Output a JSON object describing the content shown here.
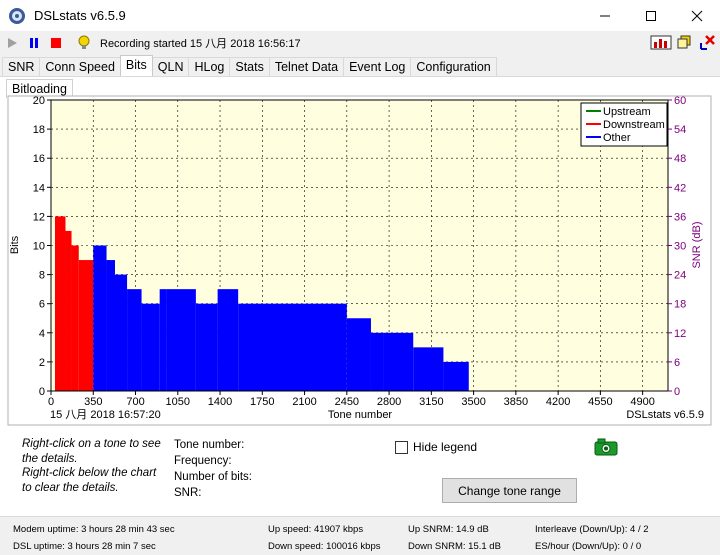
{
  "window": {
    "title": "DSLstats v6.5.9"
  },
  "toolbar": {
    "status": "Recording started 15 八月 2018 16:56:17"
  },
  "tabs": [
    "SNR",
    "Conn Speed",
    "Bits",
    "QLN",
    "HLog",
    "Stats",
    "Telnet Data",
    "Event Log",
    "Configuration"
  ],
  "active_tab": "Bits",
  "subtab": "Bitloading",
  "chart_data": {
    "type": "bar",
    "xlabel": "Tone number",
    "ylabel": "Bits",
    "y2label": "SNR (dB)",
    "xlim": [
      0,
      5110
    ],
    "ylim": [
      0,
      20
    ],
    "y2lim": [
      0,
      60
    ],
    "xticks": [
      "0",
      "350",
      "700",
      "1050",
      "1400",
      "1750",
      "2100",
      "2450",
      "2800",
      "3150",
      "3500",
      "3850",
      "4200",
      "4550",
      "4900"
    ],
    "yticks": [
      "0",
      "2",
      "4",
      "6",
      "8",
      "10",
      "12",
      "14",
      "16",
      "18",
      "20"
    ],
    "y2ticks": [
      "0",
      "6",
      "12",
      "18",
      "24",
      "30",
      "36",
      "42",
      "48",
      "54",
      "60"
    ],
    "timestamp": "15 八月 2018 16:57:20",
    "watermark": "DSLstats v6.5.9",
    "legend_position": "top-right",
    "grid": true,
    "series": [
      {
        "name": "Upstream",
        "color": "#008000",
        "segments": []
      },
      {
        "name": "Downstream",
        "color": "#ff0000",
        "segments": [
          [
            33,
            120,
            12
          ],
          [
            120,
            170,
            11
          ],
          [
            170,
            230,
            10
          ],
          [
            230,
            350,
            9
          ]
        ]
      },
      {
        "name": "Other",
        "color": "#0000ff",
        "segments": [
          [
            350,
            460,
            10
          ],
          [
            460,
            530,
            9
          ],
          [
            530,
            630,
            8
          ],
          [
            630,
            750,
            7
          ],
          [
            750,
            900,
            6
          ],
          [
            900,
            960,
            7
          ],
          [
            960,
            1200,
            7
          ],
          [
            1200,
            1380,
            6
          ],
          [
            1380,
            1550,
            7
          ],
          [
            1550,
            2450,
            6
          ],
          [
            2450,
            2650,
            5
          ],
          [
            2650,
            2750,
            4
          ],
          [
            2750,
            3000,
            4
          ],
          [
            3000,
            3250,
            3
          ],
          [
            3250,
            3460,
            2
          ]
        ]
      }
    ]
  },
  "notes": [
    "Right-click on a tone to see",
    "the details.",
    "Right-click below the chart",
    "to clear the details."
  ],
  "details": {
    "tone_number": "Tone number:",
    "frequency": "Frequency:",
    "number_of_bits": "Number of bits:",
    "snr": "SNR:"
  },
  "hide_legend_label": "Hide legend",
  "change_tone_button": "Change tone range",
  "statusbar": {
    "modem_uptime": "Modem uptime:  3 hours 28 min 43 sec",
    "dsl_uptime": "DSL uptime:  3 hours 28 min 7 sec",
    "up_speed": "Up speed: 41907 kbps",
    "down_speed": "Down speed: 100016 kbps",
    "up_snrm": "Up SNRM: 14.9 dB",
    "down_snrm": "Down SNRM: 15.1 dB",
    "interleave": "Interleave (Down/Up): 4 / 2",
    "es_hour": "ES/hour (Down/Up): 0 / 0"
  }
}
